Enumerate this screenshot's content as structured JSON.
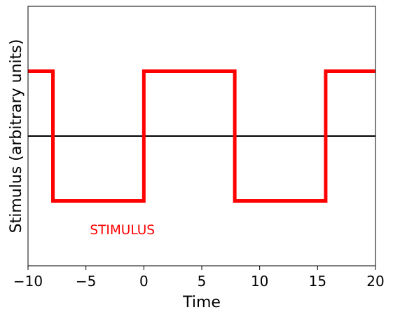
{
  "chart_data": {
    "type": "line",
    "title": "",
    "xlabel": "Time",
    "ylabel": "Stimulus (arbitrary units)",
    "xlim": [
      -10,
      20
    ],
    "ylim": [
      -2,
      2
    ],
    "x_ticks": [
      -10,
      -5,
      0,
      5,
      10,
      15,
      20
    ],
    "x_tick_labels": [
      "−10",
      "−5",
      "0",
      "5",
      "10",
      "15",
      "20"
    ],
    "y_ticks": [],
    "grid": false,
    "legend": "none",
    "series": [
      {
        "color": "#ff0000",
        "step": true,
        "x": [
          -10,
          -7.85,
          -7.85,
          0,
          0,
          7.85,
          7.85,
          15.7,
          15.7,
          20
        ],
        "y": [
          1,
          1,
          -1,
          -1,
          1,
          1,
          -1,
          -1,
          1,
          1
        ]
      }
    ],
    "baseline": {
      "y": 0,
      "color": "#000000"
    },
    "annotations": [
      {
        "text": "STIMULUS",
        "x": -5,
        "y": -1.45,
        "color": "#ff0000"
      }
    ]
  }
}
